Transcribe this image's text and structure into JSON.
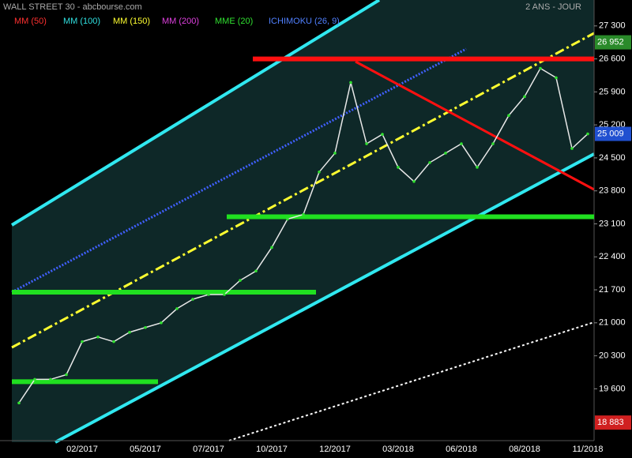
{
  "chart_data": {
    "type": "line",
    "title": "WALL STREET 30 - abcbourse.com",
    "subtitle": "2 ANS - JOUR",
    "categories": [
      null,
      null,
      null,
      null,
      "02/2017",
      null,
      null,
      null,
      "05/2017",
      null,
      null,
      null,
      "07/2017",
      null,
      null,
      null,
      "10/2017",
      null,
      null,
      null,
      "12/2017",
      null,
      null,
      null,
      "03/2018",
      null,
      null,
      null,
      "06/2018",
      null,
      null,
      null,
      "08/2018",
      null,
      null,
      null,
      "11/2018"
    ],
    "values": [
      19300,
      19800,
      19800,
      19900,
      20600,
      20700,
      20600,
      20800,
      20900,
      21000,
      21300,
      21500,
      21600,
      21600,
      21900,
      22100,
      22600,
      23200,
      23300,
      24200,
      24600,
      26100,
      24800,
      25000,
      24300,
      24000,
      24400,
      24600,
      24800,
      24300,
      24800,
      25400,
      25800,
      26400,
      26200,
      24700,
      25009
    ],
    "color": "#e8e8e8",
    "ylim": [
      18500,
      27850
    ],
    "yticks": [
      {
        "value": 19600,
        "label": "19 600"
      },
      {
        "value": 20300,
        "label": "20 300"
      },
      {
        "value": 21000,
        "label": "21 000"
      },
      {
        "value": 21700,
        "label": "21 700"
      },
      {
        "value": 22400,
        "label": "22 400"
      },
      {
        "value": 23100,
        "label": "23 100"
      },
      {
        "value": 23800,
        "label": "23 800"
      },
      {
        "value": 24500,
        "label": "24 500"
      },
      {
        "value": 25200,
        "label": "25 200"
      },
      {
        "value": 25900,
        "label": "25 900"
      },
      {
        "value": 26600,
        "label": "26 600"
      },
      {
        "value": 27300,
        "label": "27 300"
      }
    ],
    "indicators": [
      {
        "name": "MM (50)",
        "color": "#ff3030"
      },
      {
        "name": "MM (100)",
        "color": "#30e0e0"
      },
      {
        "name": "MM (150)",
        "color": "#ffff30"
      },
      {
        "name": "MM (200)",
        "color": "#e040e0"
      },
      {
        "name": "MME (20)",
        "color": "#30e030"
      },
      {
        "name": "ICHIMOKU (26, 9)",
        "color": "#5080ff"
      }
    ],
    "hlines": [
      {
        "value": 26600,
        "color": "#ff1010"
      },
      {
        "value": 23250,
        "color": "#20e020"
      },
      {
        "value": 21650,
        "color": "#20e020"
      },
      {
        "value": 19750,
        "color": "#20e020"
      }
    ],
    "markers": [
      {
        "value": 26952,
        "label": "26 952",
        "color": "#2a8a2a"
      },
      {
        "value": 25009,
        "label": "25 009",
        "color": "#2050d0"
      },
      {
        "value": 18883,
        "label": "18 883",
        "color": "#d02020"
      }
    ]
  }
}
